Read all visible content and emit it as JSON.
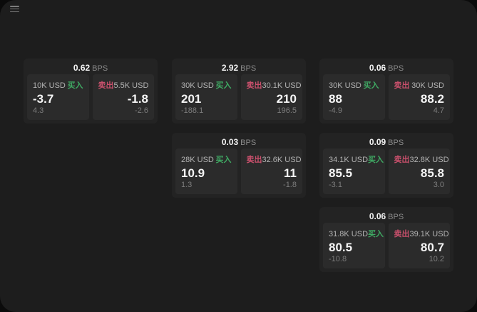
{
  "labels": {
    "bps": "BPS",
    "buy": "买入",
    "sell": "卖出"
  },
  "icons": {
    "menu": "hamburger-menu"
  },
  "colors": {
    "buy": "#3fa963",
    "sell": "#c9506c",
    "page_bg": "#1d1d1d",
    "card_bg": "#232323",
    "panel_bg": "#2b2b2b"
  },
  "cards": [
    {
      "col": 1,
      "row": 1,
      "bps": "0.62",
      "buy": {
        "amount": "10K USD",
        "value": "-3.7",
        "delta": "4.3"
      },
      "sell": {
        "amount": "5.5K USD",
        "value": "-1.8",
        "delta": "-2.6"
      }
    },
    {
      "col": 2,
      "row": 1,
      "bps": "2.92",
      "buy": {
        "amount": "30K USD",
        "value": "201",
        "delta": "-188.1"
      },
      "sell": {
        "amount": "30.1K USD",
        "value": "210",
        "delta": "196.5"
      }
    },
    {
      "col": 3,
      "row": 1,
      "bps": "0.06",
      "buy": {
        "amount": "30K USD",
        "value": "88",
        "delta": "-4.9"
      },
      "sell": {
        "amount": "30K USD",
        "value": "88.2",
        "delta": "4.7"
      }
    },
    {
      "col": 2,
      "row": 2,
      "bps": "0.03",
      "buy": {
        "amount": "28K USD",
        "value": "10.9",
        "delta": "1.3"
      },
      "sell": {
        "amount": "32.6K USD",
        "value": "11",
        "delta": "-1.8"
      }
    },
    {
      "col": 3,
      "row": 2,
      "bps": "0.09",
      "buy": {
        "amount": "34.1K USD",
        "value": "85.5",
        "delta": "-3.1"
      },
      "sell": {
        "amount": "32.8K USD",
        "value": "85.8",
        "delta": "3.0"
      }
    },
    {
      "col": 3,
      "row": 3,
      "bps": "0.06",
      "buy": {
        "amount": "31.8K USD",
        "value": "80.5",
        "delta": "-10.8"
      },
      "sell": {
        "amount": "39.1K USD",
        "value": "80.7",
        "delta": "10.2"
      }
    }
  ]
}
